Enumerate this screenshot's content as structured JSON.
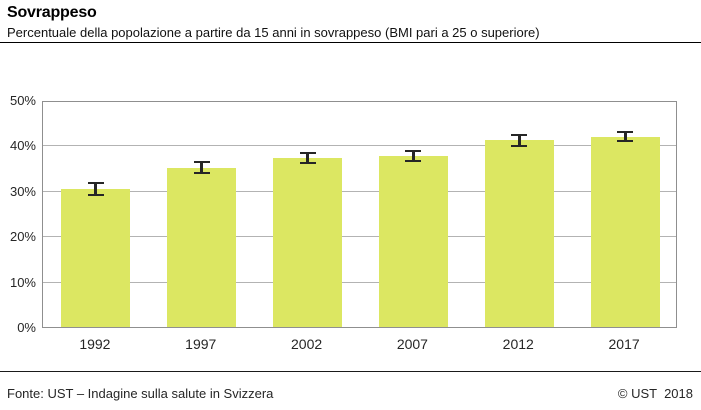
{
  "header": {
    "title": "Sovrappeso",
    "subtitle": "Percentuale della popolazione a partire da 15 anni in sovrappeso (BMI pari a 25 o superiore)"
  },
  "footer": {
    "source": "Fonte: UST – Indagine sulla salute in Svizzera",
    "copyright": "© UST  2018"
  },
  "chart_data": {
    "type": "bar",
    "title": "Sovrappeso",
    "subtitle": "Percentuale della popolazione a partire da 15 anni in sovrappeso (BMI pari a 25 o superiore)",
    "categories": [
      "1992",
      "1997",
      "2002",
      "2007",
      "2012",
      "2017"
    ],
    "values": [
      30.3,
      35.1,
      37.2,
      37.6,
      41.1,
      41.9
    ],
    "error_margins": [
      1.1,
      1.0,
      0.9,
      0.9,
      1.0,
      0.8
    ],
    "xlabel": "",
    "ylabel": "",
    "ylim": [
      0,
      50
    ],
    "ytick_step": 10,
    "ytick_suffix": "%",
    "grid": true,
    "legend": "none",
    "bar_color": "#dce762",
    "gridline_color": "#b3b3b3",
    "frame_color": "#8f8f8f",
    "error_bar_color": "#262626"
  }
}
